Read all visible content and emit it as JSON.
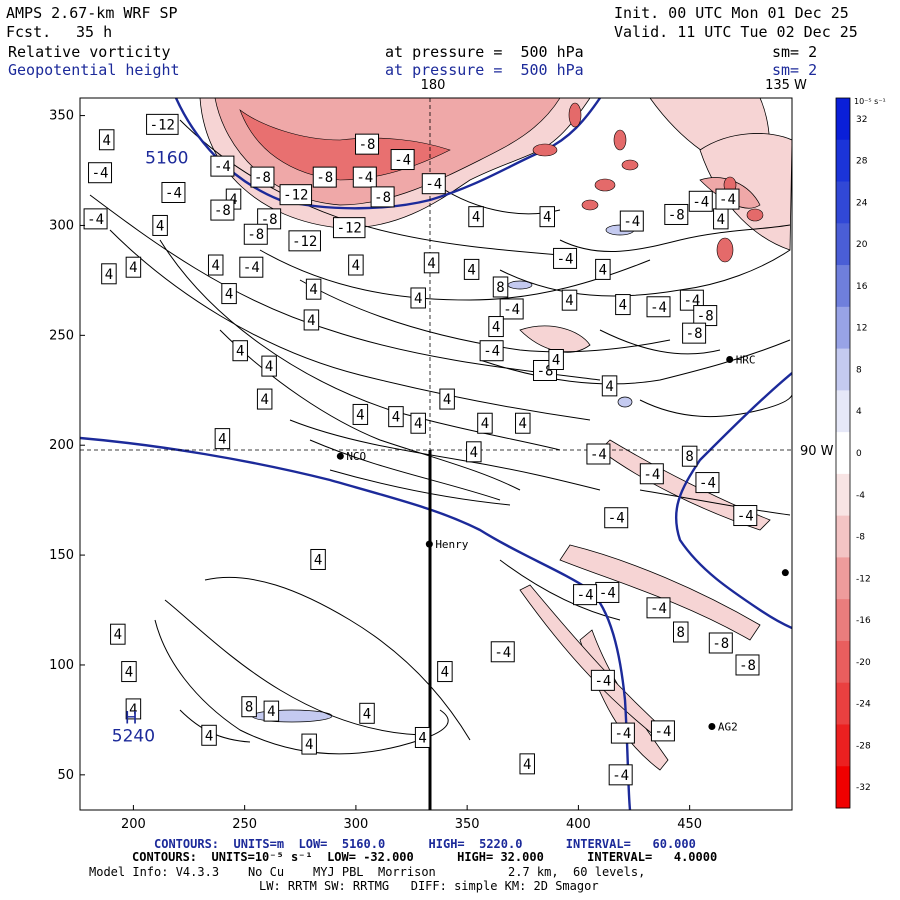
{
  "header": {
    "model": "AMPS 2.67-km WRF SP",
    "fcst_label": "Fcst.",
    "fcst_value": "35 h",
    "init": "Init. 00 UTC Mon 01 Dec 25",
    "valid": "Valid. 11 UTC Tue 02 Dec 25",
    "field1": "Relative vorticity",
    "field2": "Geopotential height",
    "pressure1": "at pressure =  500 hPa",
    "pressure2": "at pressure =  500 hPa",
    "sm1": "sm= 2",
    "sm2": "sm= 2"
  },
  "map": {
    "top_meridian_labels": [
      "180",
      "135 W"
    ],
    "right_meridian_label": "90 W",
    "x_ticks": [
      "200",
      "250",
      "300",
      "350",
      "400",
      "450"
    ],
    "y_ticks": [
      "350",
      "300",
      "250",
      "200",
      "150",
      "100",
      "50"
    ],
    "x_range": [
      176,
      496
    ],
    "y_range": [
      34,
      358
    ],
    "stations": [
      {
        "name": "NCO",
        "x": 293,
        "y": 195
      },
      {
        "name": "Henry",
        "x": 333,
        "y": 155
      },
      {
        "name": "HRC",
        "x": 468,
        "y": 239
      },
      {
        "name": "AG2",
        "x": 460,
        "y": 72
      },
      {
        "name": "",
        "x": 493,
        "y": 142
      }
    ],
    "height_labels": [
      {
        "text": "5160",
        "x": 215,
        "y": 331
      },
      {
        "text": "H",
        "x": 199,
        "y": 76
      },
      {
        "text": "5240",
        "x": 200,
        "y": 68
      }
    ],
    "contour_labels": [
      {
        "t": "-12",
        "x": 213,
        "y": 346
      },
      {
        "t": "4",
        "x": 188,
        "y": 339
      },
      {
        "t": "-8",
        "x": 305,
        "y": 337
      },
      {
        "t": "-4",
        "x": 185,
        "y": 324
      },
      {
        "t": "-4",
        "x": 240,
        "y": 327
      },
      {
        "t": "-8",
        "x": 258,
        "y": 322
      },
      {
        "t": "-8",
        "x": 286,
        "y": 322
      },
      {
        "t": "-4",
        "x": 304,
        "y": 322
      },
      {
        "t": "-4",
        "x": 335,
        "y": 319
      },
      {
        "t": "-12",
        "x": 273,
        "y": 314
      },
      {
        "t": "-8",
        "x": 312,
        "y": 313
      },
      {
        "t": "4",
        "x": 245,
        "y": 312
      },
      {
        "t": "-4",
        "x": 218,
        "y": 315
      },
      {
        "t": "-8",
        "x": 240,
        "y": 307
      },
      {
        "t": "-4",
        "x": 183,
        "y": 303
      },
      {
        "t": "4",
        "x": 212,
        "y": 300
      },
      {
        "t": "-8",
        "x": 261,
        "y": 303
      },
      {
        "t": "-12",
        "x": 297,
        "y": 299
      },
      {
        "t": "-8",
        "x": 255,
        "y": 296
      },
      {
        "t": "-12",
        "x": 277,
        "y": 293
      },
      {
        "t": "4",
        "x": 200,
        "y": 281
      },
      {
        "t": "-4",
        "x": 168,
        "y": 278
      },
      {
        "t": "4",
        "x": 189,
        "y": 278
      },
      {
        "t": "4",
        "x": 237,
        "y": 282
      },
      {
        "t": "-4",
        "x": 253,
        "y": 281
      },
      {
        "t": "4",
        "x": 300,
        "y": 282
      },
      {
        "t": "4",
        "x": 334,
        "y": 283
      },
      {
        "t": "4",
        "x": 352,
        "y": 280
      },
      {
        "t": "8",
        "x": 365,
        "y": 272
      },
      {
        "t": "4",
        "x": 328,
        "y": 267
      },
      {
        "t": "4",
        "x": 281,
        "y": 271
      },
      {
        "t": "4",
        "x": 243,
        "y": 269
      },
      {
        "t": "-4",
        "x": 370,
        "y": 262
      },
      {
        "t": "4",
        "x": 396,
        "y": 266
      },
      {
        "t": "4",
        "x": 420,
        "y": 264
      },
      {
        "t": "-4",
        "x": 436,
        "y": 263
      },
      {
        "t": "4",
        "x": 411,
        "y": 280
      },
      {
        "t": "4",
        "x": 386,
        "y": 304
      },
      {
        "t": "4",
        "x": 354,
        "y": 304
      },
      {
        "t": "-4",
        "x": 394,
        "y": 285
      },
      {
        "t": "-4",
        "x": 321,
        "y": 330
      },
      {
        "t": "-4",
        "x": 424,
        "y": 302
      },
      {
        "t": "-8",
        "x": 444,
        "y": 305
      },
      {
        "t": "4",
        "x": 464,
        "y": 303
      },
      {
        "t": "-4",
        "x": 455,
        "y": 311
      },
      {
        "t": "-4",
        "x": 467,
        "y": 312
      },
      {
        "t": "-4",
        "x": 451,
        "y": 266
      },
      {
        "t": "4",
        "x": 280,
        "y": 257
      },
      {
        "t": "4",
        "x": 363,
        "y": 254
      },
      {
        "t": "-4",
        "x": 361,
        "y": 243
      },
      {
        "t": "-8",
        "x": 385,
        "y": 234
      },
      {
        "t": "-8",
        "x": 457,
        "y": 259
      },
      {
        "t": "4",
        "x": 248,
        "y": 243
      },
      {
        "t": "-8",
        "x": 452,
        "y": 251
      },
      {
        "t": "4",
        "x": 261,
        "y": 236
      },
      {
        "t": "4",
        "x": 390,
        "y": 239
      },
      {
        "t": "4",
        "x": 414,
        "y": 227
      },
      {
        "t": "4",
        "x": 341,
        "y": 221
      },
      {
        "t": "4",
        "x": 259,
        "y": 221
      },
      {
        "t": "4",
        "x": 302,
        "y": 214
      },
      {
        "t": "4",
        "x": 328,
        "y": 210
      },
      {
        "t": "4",
        "x": 358,
        "y": 210
      },
      {
        "t": "4",
        "x": 375,
        "y": 210
      },
      {
        "t": "4",
        "x": 240,
        "y": 203
      },
      {
        "t": "-4",
        "x": 409,
        "y": 196
      },
      {
        "t": "8",
        "x": 450,
        "y": 195
      },
      {
        "t": "-4",
        "x": 433,
        "y": 187
      },
      {
        "t": "4",
        "x": 353,
        "y": 197
      },
      {
        "t": "-4",
        "x": 458,
        "y": 183
      },
      {
        "t": "-4",
        "x": 475,
        "y": 168
      },
      {
        "t": "-4",
        "x": 417,
        "y": 167
      },
      {
        "t": "4",
        "x": 318,
        "y": 213
      },
      {
        "t": "4",
        "x": 283,
        "y": 148
      },
      {
        "t": "-4",
        "x": 413,
        "y": 133
      },
      {
        "t": "-4",
        "x": 403,
        "y": 132
      },
      {
        "t": "-4",
        "x": 436,
        "y": 126
      },
      {
        "t": "8",
        "x": 446,
        "y": 115
      },
      {
        "t": "-8",
        "x": 464,
        "y": 110
      },
      {
        "t": "4",
        "x": 193,
        "y": 114
      },
      {
        "t": "-4",
        "x": 366,
        "y": 106
      },
      {
        "t": "4",
        "x": 198,
        "y": 97
      },
      {
        "t": "4",
        "x": 340,
        "y": 97
      },
      {
        "t": "-8",
        "x": 476,
        "y": 100
      },
      {
        "t": "4",
        "x": 200,
        "y": 80
      },
      {
        "t": "8",
        "x": 252,
        "y": 81
      },
      {
        "t": "4",
        "x": 262,
        "y": 79
      },
      {
        "t": "4",
        "x": 305,
        "y": 78
      },
      {
        "t": "-4",
        "x": 411,
        "y": 93
      },
      {
        "t": "-4",
        "x": 420,
        "y": 69
      },
      {
        "t": "-4",
        "x": 438,
        "y": 70
      },
      {
        "t": "4",
        "x": 234,
        "y": 68
      },
      {
        "t": "4",
        "x": 279,
        "y": 64
      },
      {
        "t": "4",
        "x": 330,
        "y": 67
      },
      {
        "t": "4",
        "x": 377,
        "y": 55
      },
      {
        "t": "-4",
        "x": 419,
        "y": 50
      }
    ]
  },
  "colorbar": {
    "unit": "10⁻⁵ s⁻¹",
    "labels": [
      "32",
      "28",
      "24",
      "20",
      "16",
      "12",
      "8",
      "4",
      "0",
      "-4",
      "-8",
      "-12",
      "-16",
      "-20",
      "-24",
      "-28",
      "-32"
    ],
    "colors": [
      "#0a1fd9",
      "#1b34d9",
      "#3148d6",
      "#4a5ed6",
      "#6f7fdc",
      "#98a3e6",
      "#c4caf0",
      "#e6e8f8",
      "#ffffff",
      "#f8e4e4",
      "#f3c4c4",
      "#ee9c9c",
      "#ea7d7d",
      "#e95e5e",
      "#ea4040",
      "#ec2020",
      "#f00000"
    ]
  },
  "footer": {
    "contours1": "CONTOURS:  UNITS=m  LOW=  5160.0      HIGH=  5220.0      INTERVAL=   60.000",
    "contours2": "CONTOURS:  UNITS=10⁻⁵ s⁻¹  LOW= -32.000      HIGH= 32.000      INTERVAL=   4.0000",
    "model_info": "Model Info: V4.3.3    No Cu    MYJ PBL  Morrison          2.7 km,  60 levels,",
    "model_info2": "LW: RRTM SW: RRTMG   DIFF: simple KM: 2D Smagor"
  }
}
